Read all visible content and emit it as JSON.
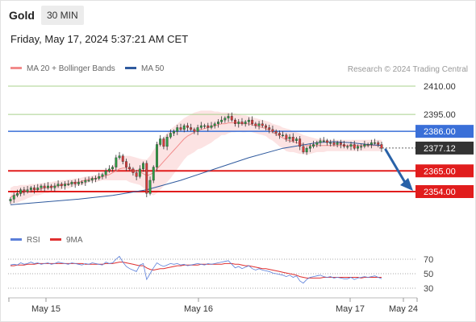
{
  "header": {
    "instrument": "Gold",
    "timeframe": "30 MIN",
    "timestamp": "Friday, May 17, 2024 5:37:21 AM CET"
  },
  "legend": {
    "ma20": {
      "label": "MA 20 + Bollinger Bands",
      "color": "#f28b8b"
    },
    "ma50": {
      "label": "MA 50",
      "color": "#2f5a9e"
    }
  },
  "credit": "Research © 2024 Trading Central",
  "rsi_legend": {
    "rsi": {
      "label": "RSI",
      "color": "#5b7fd9"
    },
    "ma9": {
      "label": "9MA",
      "color": "#e03030"
    }
  },
  "colors": {
    "up": "#2e9e44",
    "down": "#d83a3a",
    "resistance": "#a9d08e",
    "support": "#e11d1d",
    "pivot": "#3a6fd8",
    "last": "#333333",
    "arrow": "#2962a8"
  },
  "chart_data": [
    {
      "type": "candlestick",
      "ylim": [
        2328,
        2418
      ],
      "x_ticks": [
        "May 15",
        "May 16",
        "May 17",
        "May 24"
      ],
      "levels": [
        {
          "value": 2410.0,
          "label": "2410.00",
          "kind": "resistance"
        },
        {
          "value": 2395.0,
          "label": "2395.00",
          "kind": "resistance"
        },
        {
          "value": 2386.0,
          "label": "2386.00",
          "kind": "pivot"
        },
        {
          "value": 2377.12,
          "label": "2377.12",
          "kind": "last"
        },
        {
          "value": 2365.0,
          "label": "2365.00",
          "kind": "support"
        },
        {
          "value": 2354.0,
          "label": "2354.00",
          "kind": "support"
        }
      ],
      "forecast": {
        "from": 2377.12,
        "to": 2354.0,
        "direction": "down"
      },
      "close": [
        2350,
        2352,
        2353,
        2355,
        2354,
        2355,
        2356,
        2355,
        2356,
        2357,
        2356,
        2357,
        2356,
        2357,
        2358,
        2357,
        2358,
        2358,
        2359,
        2358,
        2359,
        2359,
        2360,
        2360,
        2361,
        2361,
        2362,
        2363,
        2365,
        2366,
        2367,
        2372,
        2373,
        2370,
        2367,
        2366,
        2364,
        2362,
        2366,
        2369,
        2353,
        2360,
        2367,
        2379,
        2382,
        2378,
        2383,
        2385,
        2386,
        2388,
        2387,
        2389,
        2388,
        2387,
        2386,
        2388,
        2389,
        2389,
        2388,
        2389,
        2390,
        2391,
        2392,
        2393,
        2394,
        2392,
        2390,
        2391,
        2390,
        2391,
        2392,
        2390,
        2389,
        2390,
        2389,
        2388,
        2387,
        2386,
        2385,
        2384,
        2384,
        2382,
        2383,
        2381,
        2382,
        2378,
        2375,
        2377,
        2378,
        2379,
        2380,
        2381,
        2381,
        2380,
        2380,
        2379,
        2380,
        2379,
        2378,
        2378,
        2379,
        2377,
        2378,
        2378,
        2379,
        2379,
        2380,
        2380,
        2379,
        2377
      ],
      "ma20": [
        2351,
        2352,
        2352.5,
        2353,
        2353.5,
        2354,
        2354.5,
        2355,
        2355,
        2355.5,
        2356,
        2356,
        2356.5,
        2357,
        2357,
        2357.5,
        2358,
        2358,
        2358.5,
        2359,
        2359,
        2359.5,
        2360,
        2360.5,
        2361,
        2361,
        2361.5,
        2362,
        2362.5,
        2363,
        2364,
        2365,
        2366,
        2366.5,
        2366.5,
        2366,
        2365.5,
        2365,
        2364.5,
        2363.5,
        2362.5,
        2363,
        2364,
        2366,
        2368,
        2370,
        2372,
        2374,
        2376,
        2378,
        2380,
        2382,
        2383.5,
        2384.5,
        2385.5,
        2386.5,
        2387,
        2387.5,
        2388,
        2388.5,
        2389,
        2389.5,
        2390,
        2390,
        2390.5,
        2390.5,
        2390.5,
        2390.5,
        2390,
        2390,
        2390,
        2389.5,
        2389,
        2388.5,
        2388,
        2387.5,
        2386.5,
        2385.5,
        2384.5,
        2383.5,
        2382.5,
        2381.5,
        2381,
        2380.5,
        2380,
        2379.5,
        2379,
        2378.5,
        2378.5,
        2378.5,
        2378.5,
        2378.5,
        2378.5,
        2378.5,
        2378.5,
        2378.5,
        2378.5,
        2378.5,
        2378.5,
        2378.5,
        2378.5,
        2378.5,
        2378.5,
        2378.5,
        2378.5,
        2378.5,
        2378.5,
        2378.5,
        2378.5,
        2378.5
      ],
      "bb_upper": [
        2356,
        2357,
        2357,
        2357.5,
        2357.5,
        2357.5,
        2358,
        2358,
        2358,
        2358.5,
        2358.5,
        2359,
        2359,
        2359.5,
        2359.5,
        2360,
        2360,
        2360.5,
        2360.5,
        2361,
        2361,
        2361.5,
        2362,
        2362,
        2362.5,
        2363,
        2363.5,
        2364,
        2365,
        2366,
        2368,
        2370,
        2372,
        2373,
        2373,
        2373,
        2372.5,
        2372,
        2371.5,
        2371,
        2371,
        2373,
        2376,
        2379,
        2381,
        2383,
        2385,
        2387,
        2388.5,
        2390,
        2391.5,
        2393,
        2394,
        2395,
        2396,
        2396.5,
        2397,
        2397,
        2397,
        2397,
        2396.5,
        2396.5,
        2396,
        2396,
        2396,
        2395.5,
        2395.5,
        2395,
        2394.5,
        2394.5,
        2394,
        2393.5,
        2393,
        2392.5,
        2392,
        2391.5,
        2391,
        2390,
        2389.5,
        2389,
        2388,
        2387.5,
        2387,
        2386,
        2385.5,
        2385,
        2384,
        2383.5,
        2383,
        2382.5,
        2382,
        2382,
        2382,
        2381.5,
        2381.5,
        2381.5,
        2381.5,
        2381.5,
        2381.5,
        2381.5,
        2381.5,
        2381.5,
        2381.5,
        2381.5,
        2381.5,
        2381.5,
        2381.5,
        2381.5,
        2381.5,
        2381.5
      ],
      "bb_lower": [
        2347,
        2348,
        2348,
        2349,
        2349.5,
        2350.5,
        2351,
        2352,
        2352,
        2352.5,
        2353,
        2353,
        2354,
        2354.5,
        2354.5,
        2355,
        2356,
        2355.5,
        2356.5,
        2357,
        2357,
        2357.5,
        2358,
        2359,
        2359.5,
        2359,
        2359.5,
        2360,
        2360,
        2360,
        2360,
        2360,
        2360,
        2360,
        2360,
        2359,
        2358.5,
        2358,
        2357.5,
        2356,
        2354,
        2353,
        2352,
        2353,
        2355,
        2357,
        2359,
        2361,
        2363.5,
        2366,
        2368.5,
        2371,
        2373,
        2374,
        2375,
        2376.5,
        2377,
        2378,
        2379,
        2380,
        2381.5,
        2382.5,
        2384,
        2384,
        2385,
        2385.5,
        2385.5,
        2386,
        2385.5,
        2385.5,
        2386,
        2385.5,
        2385,
        2384.5,
        2384,
        2383.5,
        2382,
        2381,
        2379.5,
        2378,
        2377,
        2375.5,
        2375,
        2375,
        2374.5,
        2374,
        2374,
        2373.5,
        2374,
        2374.5,
        2375,
        2375,
        2375,
        2375.5,
        2375.5,
        2375.5,
        2375.5,
        2375.5,
        2375.5,
        2375.5,
        2375.5,
        2375.5,
        2375.5,
        2375.5,
        2375.5,
        2375.5,
        2375.5,
        2375.5,
        2375.5,
        2375.5
      ],
      "ma50_points": [
        [
          0,
          2347
        ],
        [
          10,
          2348.5
        ],
        [
          20,
          2350
        ],
        [
          30,
          2352
        ],
        [
          40,
          2355
        ],
        [
          50,
          2360
        ],
        [
          60,
          2366
        ],
        [
          70,
          2372
        ],
        [
          80,
          2377
        ],
        [
          90,
          2380
        ],
        [
          95,
          2380.5
        ],
        [
          100,
          2380
        ],
        [
          105,
          2379
        ],
        [
          109,
          2378.5
        ]
      ]
    },
    {
      "type": "line",
      "ylim": [
        20,
        80
      ],
      "y_ticks": [
        30,
        50,
        70
      ],
      "rsi": [
        62,
        63,
        62,
        65,
        63,
        64,
        66,
        64,
        65,
        63,
        64,
        65,
        63,
        64,
        66,
        65,
        64,
        63,
        65,
        64,
        63,
        62,
        64,
        63,
        65,
        64,
        63,
        62,
        66,
        64,
        65,
        70,
        74,
        66,
        60,
        57,
        55,
        53,
        62,
        64,
        42,
        50,
        58,
        65,
        62,
        60,
        62,
        64,
        63,
        64,
        62,
        63,
        61,
        62,
        63,
        64,
        63,
        62,
        64,
        63,
        64,
        65,
        66,
        67,
        68,
        63,
        58,
        60,
        57,
        59,
        61,
        57,
        55,
        57,
        55,
        54,
        53,
        51,
        50,
        49,
        48,
        46,
        48,
        45,
        47,
        40,
        37,
        42,
        45,
        46,
        47,
        48,
        46,
        45,
        46,
        44,
        45,
        44,
        43,
        43,
        45,
        42,
        44,
        45,
        46,
        45,
        46,
        47,
        45,
        43
      ],
      "ma9": [
        61,
        61,
        62,
        62,
        62,
        63,
        63,
        63,
        64,
        64,
        64,
        64,
        64,
        64,
        64,
        64,
        64,
        64,
        64,
        64,
        64,
        64,
        63,
        63,
        63,
        63,
        63,
        63,
        64,
        64,
        64,
        65,
        66,
        66,
        65,
        64,
        63,
        62,
        61,
        61,
        58,
        56,
        55,
        56,
        57,
        57,
        58,
        59,
        60,
        61,
        61,
        62,
        62,
        62,
        62,
        62,
        63,
        63,
        63,
        63,
        63,
        63,
        63,
        64,
        64,
        64,
        63,
        63,
        62,
        61,
        61,
        60,
        59,
        58,
        57,
        57,
        56,
        55,
        54,
        53,
        52,
        51,
        50,
        49,
        48,
        46,
        45,
        44,
        44,
        44,
        44,
        44,
        45,
        45,
        45,
        45,
        45,
        45,
        45,
        45,
        45,
        45,
        45,
        44,
        45,
        45,
        45,
        45,
        45,
        45
      ]
    }
  ]
}
